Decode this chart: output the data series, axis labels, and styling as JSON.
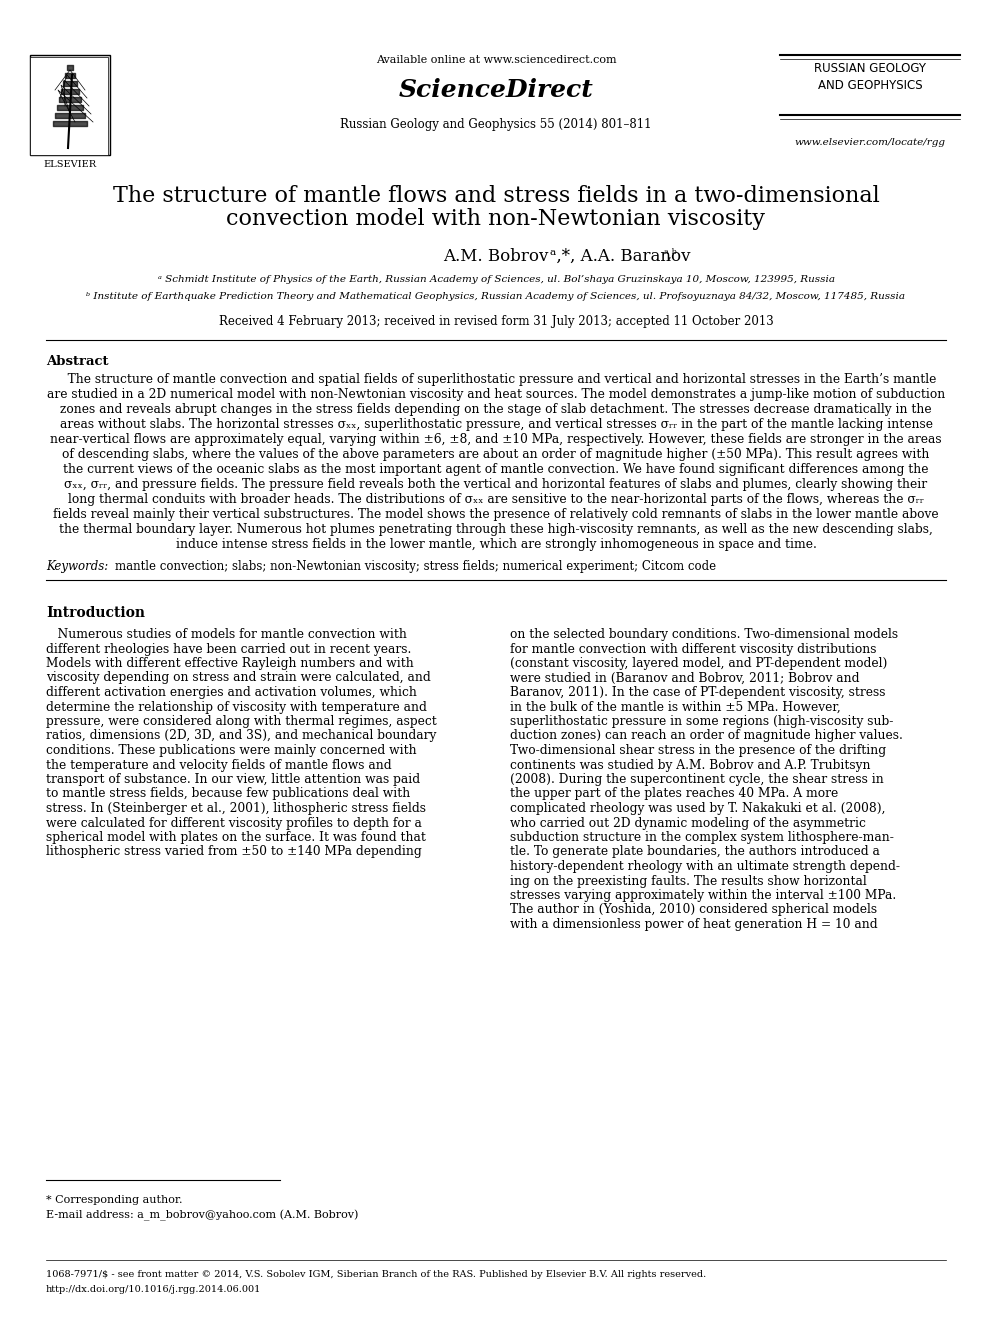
{
  "header_available_online": "Available online at www.sciencedirect.com",
  "header_sciencedirect": "ScienceDirect",
  "header_journal": "Russian Geology and Geophysics 55 (2014) 801–811",
  "header_journal_name": "RUSSIAN GEOLOGY\nAND GEOPHYSICS",
  "header_url": "www.elsevier.com/locate/rgg",
  "title_line1": "The structure of mantle flows and stress fields in a two-dimensional",
  "title_line2": "convection model with non-Newtonian viscosity",
  "authors": "A.M. Bobrov ᵃ,*, A.A. Baranov ᵃ,ᵇ",
  "affil_a": "ᵃ Schmidt Institute of Physics of the Earth, Russian Academy of Sciences, ul. Bol’shaya Gruzinskaya 10, Moscow, 123995, Russia",
  "affil_b": "ᵇ Institute of Earthquake Prediction Theory and Mathematical Geophysics, Russian Academy of Sciences, ul. Profsoyuznaya 84/32, Moscow, 117485, Russia",
  "received": "Received 4 February 2013; received in revised form 31 July 2013; accepted 11 October 2013",
  "abstract_title": "Abstract",
  "abstract_text": "   The structure of mantle convection and spatial fields of superlithostatic pressure and vertical and horizontal stresses in the Earth’s mantle are studied in a 2D numerical model with non-Newtonian viscosity and heat sources. The model demonstrates a jump-like motion of subduction zones and reveals abrupt changes in the stress fields depending on the stage of slab detachment. The stresses decrease dramatically in the areas without slabs. The horizontal stresses σₓₓ, superlithostatic pressure, and vertical stresses σᵣᵣ in the part of the mantle lacking intense near-vertical flows are approximately equal, varying within ±6, ±8, and ±10 MPa, respectively. However, these fields are stronger in the areas of descending slabs, where the values of the above parameters are about an order of magnitude higher (±50 MPa). This result agrees with the current views of the oceanic slabs as the most important agent of mantle convection. We have found significant differences among the σₓₓ, σᵣᵣ, and pressure fields. The pressure field reveals both the vertical and horizontal features of slabs and plumes, clearly showing their long thermal conduits with broader heads. The distributions of σₓₓ are sensitive to the near-horizontal parts of the flows, whereas the σᵣᵣ fields reveal mainly their vertical substructures. The model shows the presence of relatively cold remnants of slabs in the lower mantle above the thermal boundary layer. Numerous hot plumes penetrating through these high-viscosity remnants, as well as the new descending slabs, induce intense stress fields in the lower mantle, which are strongly inhomogeneous in space and time.",
  "keywords_label": "Keywords: ",
  "keywords_text": "mantle convection; slabs; non-Newtonian viscosity; stress fields; numerical experiment; Citcom code",
  "intro_title": "Introduction",
  "intro_col1_p1": "   Numerous studies of models for mantle convection with different rheologies have been carried out in recent years. Models with different effective Rayleigh numbers and with viscosity depending on stress and strain were calculated, and different activation energies and activation volumes, which determine the relationship of viscosity with temperature and pressure, were considered along with thermal regimes, aspect ratios, dimensions (2D, 3D, and 3S), and mechanical boundary conditions. These publications were mainly concerned with the temperature and velocity fields of mantle flows and transport of substance. In our view, little attention was paid to mantle stress fields, because few publications deal with stress. In (Steinberger et al., 2001), lithospheric stress fields were calculated for different viscosity profiles to depth for a spherical model with plates on the surface. It was found that lithospheric stress varied from ±50 to ±140 MPa depending",
  "intro_col2_p1": "on the selected boundary conditions. Two-dimensional models for mantle convection with different viscosity distributions (constant viscosity, layered model, and PT-dependent model) were studied in (Baranov and Bobrov, 2011; Bobrov and Baranov, 2011). In the case of PT-dependent viscosity, stress in the bulk of the mantle is within ±5 MPa. However, superlithostatic pressure in some regions (high-viscosity subduction zones) can reach an order of magnitude higher values. Two-dimensional shear stress in the presence of the drifting continents was studied by A.M. Bobrov and A.P. Trubitsyn (2008). During the supercontinent cycle, the shear stress in the upper part of the plates reaches 40 MPa. A more complicated rheology was used by T. Nakakuki et al. (2008), who carried out 2D dynamic modeling of the asymmetric subduction structure in the complex system lithosphere-mantle. To generate plate boundaries, the authors introduced a history-dependent rheology with an ultimate strength depending on the preexisting faults. The results show horizontal stresses varying approximately within the interval ±100 MPa. The author in (Yoshida, 2010) considered spherical models with a dimensionless power of heat generation H = 10 and",
  "footnote_star": "* Corresponding author.",
  "footnote_email": "E-mail address: a_m_bobrov@yahoo.com (A.M. Bobrov)",
  "footer_issn": "1068-7971/$ - see front matter © 2014, V.S. Sobolev IGM, Siberian Branch of the RAS. Published by Elsevier B.V. All rights reserved.",
  "footer_doi": "http://dx.doi.org/10.1016/j.rgg.2014.06.001",
  "bg_color": "#ffffff",
  "text_color": "#000000"
}
